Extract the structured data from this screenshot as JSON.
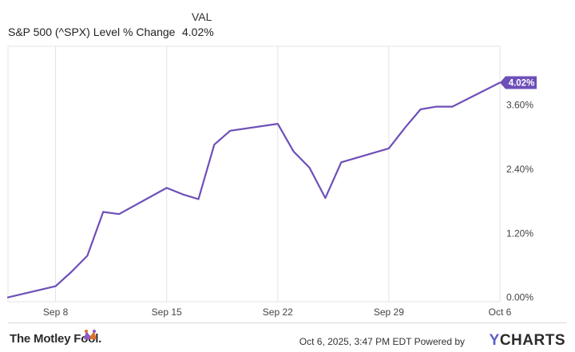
{
  "legend": {
    "header": "VAL",
    "series_name": "S&P 500 (^SPX) Level % Change",
    "series_value": "4.02%"
  },
  "chart_data": {
    "type": "line",
    "series": [
      {
        "name": "S&P 500 (^SPX) Level % Change",
        "color": "#6e4fb8",
        "x": [
          "2025-09-05",
          "2025-09-08",
          "2025-09-09",
          "2025-09-10",
          "2025-09-11",
          "2025-09-12",
          "2025-09-15",
          "2025-09-16",
          "2025-09-17",
          "2025-09-18",
          "2025-09-19",
          "2025-09-22",
          "2025-09-23",
          "2025-09-24",
          "2025-09-25",
          "2025-09-26",
          "2025-09-29",
          "2025-09-30",
          "2025-10-01",
          "2025-10-02",
          "2025-10-03",
          "2025-10-06"
        ],
        "values": [
          0.0,
          0.21,
          0.48,
          0.78,
          1.6,
          1.56,
          2.05,
          1.93,
          1.84,
          2.86,
          3.12,
          3.25,
          2.73,
          2.43,
          1.86,
          2.53,
          2.79,
          3.17,
          3.52,
          3.57,
          3.57,
          4.02
        ]
      }
    ],
    "x_tick_labels": [
      "Sep 8",
      "Sep 15",
      "Sep 22",
      "Sep 29",
      "Oct 6"
    ],
    "y_tick_labels": [
      "0.00%",
      "1.20%",
      "2.40%",
      "3.60%"
    ],
    "ylim": [
      -0.08,
      4.7
    ],
    "end_label": "4.02%",
    "grid": "vertical"
  },
  "footer": {
    "brand": "The Motley Fool.",
    "timestamp": "Oct 6, 2025, 3:47 PM EDT Powered by",
    "ycharts_y": "Y",
    "ycharts_rest": "CHARTS"
  }
}
